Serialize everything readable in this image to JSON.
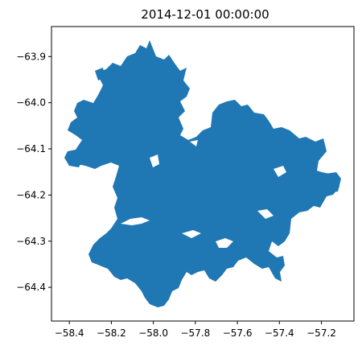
{
  "title": "2014-12-01 00:00:00",
  "map": {
    "fill_color": "#1f77b4",
    "background_color": "#ffffff",
    "x_ticks": [
      -58.4,
      -58.2,
      -58.0,
      -57.8,
      -57.6,
      -57.4,
      -57.2
    ],
    "x_tick_labels": [
      "−58.4",
      "−58.2",
      "−58.0",
      "−57.8",
      "−57.6",
      "−57.4",
      "−57.2"
    ],
    "y_ticks": [
      -63.9,
      -64.0,
      -64.1,
      -64.2,
      -64.3,
      -64.4
    ],
    "y_tick_labels": [
      "−63.9",
      "−64.0",
      "−64.1",
      "−64.2",
      "−64.3",
      "−64.4"
    ],
    "xlim": [
      -58.485,
      -57.045
    ],
    "ylim": [
      -64.473,
      -63.835
    ]
  }
}
